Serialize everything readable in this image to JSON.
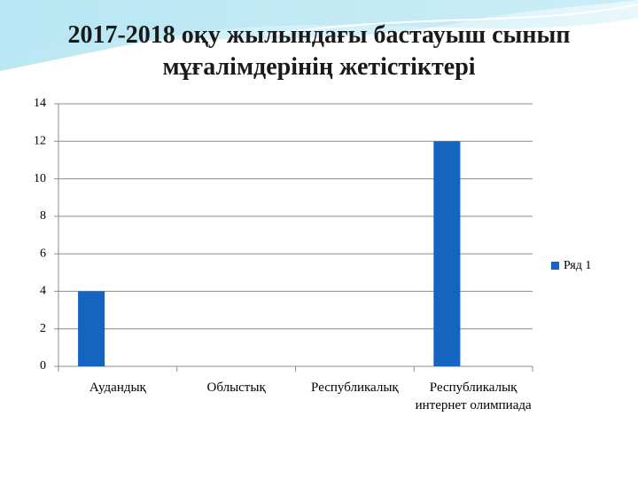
{
  "chart_data": {
    "type": "bar",
    "title": "2017-2018 оқу жылындағы бастауыш сынып мұғалімдерінің жетістіктері",
    "categories": [
      "Аудандық",
      "Облыстық",
      "Республикалық",
      "Республикалық интернет олимпиада"
    ],
    "series": [
      {
        "name": "Ряд 1",
        "color": "#1565c0",
        "values": [
          4,
          0,
          0,
          12
        ]
      }
    ],
    "ylim": [
      0,
      14
    ],
    "yticks": [
      0,
      2,
      4,
      6,
      8,
      10,
      12,
      14
    ],
    "grid": true,
    "legend": "right"
  }
}
